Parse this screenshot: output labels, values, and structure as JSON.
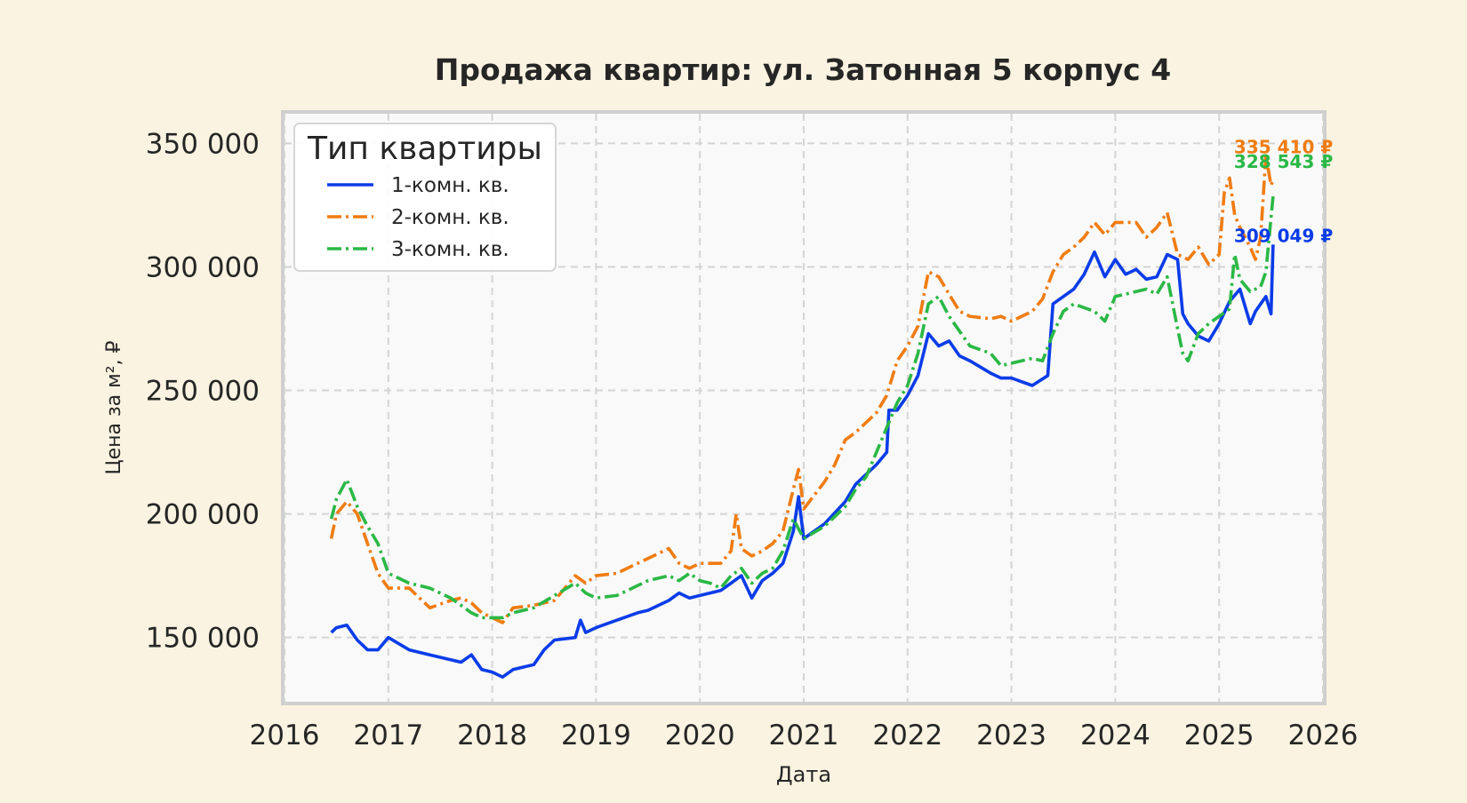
{
  "chart_data": {
    "type": "line",
    "title": "Продажа квартир: ул. Затонная 5 корпус 4",
    "xlabel": "Дата",
    "ylabel": "Цена за м², ₽",
    "xlim": [
      2016.0,
      2026.0
    ],
    "ylim": [
      124000,
      362000
    ],
    "x_ticks": [
      "2016",
      "2017",
      "2018",
      "2019",
      "2020",
      "2021",
      "2022",
      "2023",
      "2024",
      "2025",
      "2026"
    ],
    "x_tick_values": [
      2016,
      2017,
      2018,
      2019,
      2020,
      2021,
      2022,
      2023,
      2024,
      2025,
      2026
    ],
    "y_ticks": [
      "150 000",
      "200 000",
      "250 000",
      "300 000",
      "350 000"
    ],
    "y_tick_values": [
      150000,
      200000,
      250000,
      300000,
      350000
    ],
    "grid": true,
    "legend": {
      "title": "Тип квартиры",
      "position": "top-left"
    },
    "series": [
      {
        "name": "1-комн. кв.",
        "color": "#0a3ce8",
        "dash": "solid",
        "end_label": "309 049 ₽",
        "x": [
          2016.45,
          2016.5,
          2016.6,
          2016.7,
          2016.8,
          2016.9,
          2017.0,
          2017.2,
          2017.4,
          2017.6,
          2017.7,
          2017.8,
          2017.9,
          2018.0,
          2018.1,
          2018.2,
          2018.4,
          2018.5,
          2018.6,
          2018.8,
          2018.85,
          2018.9,
          2019.0,
          2019.2,
          2019.4,
          2019.5,
          2019.7,
          2019.8,
          2019.9,
          2020.0,
          2020.2,
          2020.3,
          2020.4,
          2020.5,
          2020.6,
          2020.7,
          2020.8,
          2020.9,
          2020.95,
          2021.0,
          2021.2,
          2021.4,
          2021.5,
          2021.6,
          2021.7,
          2021.8,
          2021.82,
          2021.9,
          2022.0,
          2022.1,
          2022.2,
          2022.3,
          2022.4,
          2022.5,
          2022.6,
          2022.8,
          2022.9,
          2023.0,
          2023.2,
          2023.35,
          2023.4,
          2023.6,
          2023.7,
          2023.8,
          2023.9,
          2024.0,
          2024.1,
          2024.2,
          2024.3,
          2024.4,
          2024.5,
          2024.6,
          2024.65,
          2024.7,
          2024.8,
          2024.9,
          2025.0,
          2025.1,
          2025.2,
          2025.3,
          2025.35,
          2025.4,
          2025.45,
          2025.5,
          2025.52
        ],
        "y": [
          152000,
          154000,
          155000,
          149000,
          145000,
          145000,
          150000,
          145000,
          143000,
          141000,
          140000,
          143000,
          137000,
          136000,
          134000,
          137000,
          139000,
          145000,
          149000,
          150000,
          157000,
          152000,
          154000,
          157000,
          160000,
          161000,
          165000,
          168000,
          166000,
          167000,
          169000,
          172000,
          175000,
          166000,
          173000,
          176000,
          180000,
          193000,
          207000,
          190000,
          196000,
          205000,
          212000,
          216000,
          220000,
          225000,
          242000,
          242000,
          248000,
          256000,
          273000,
          268000,
          270000,
          264000,
          262000,
          257000,
          255000,
          255000,
          252000,
          256000,
          285000,
          291000,
          297000,
          306000,
          296000,
          303000,
          297000,
          299000,
          295000,
          296000,
          305000,
          303000,
          281000,
          277000,
          272000,
          270000,
          277000,
          286000,
          291000,
          277000,
          282000,
          285000,
          288000,
          281000,
          309049
        ]
      },
      {
        "name": "2-комн. кв.",
        "color": "#f07c12",
        "dash": "dashdot",
        "end_label": "335 410 ₽",
        "x": [
          2016.45,
          2016.5,
          2016.6,
          2016.7,
          2016.8,
          2016.9,
          2017.0,
          2017.2,
          2017.4,
          2017.6,
          2017.7,
          2017.8,
          2017.9,
          2018.0,
          2018.1,
          2018.2,
          2018.4,
          2018.6,
          2018.8,
          2018.9,
          2019.0,
          2019.2,
          2019.4,
          2019.5,
          2019.7,
          2019.8,
          2019.9,
          2020.0,
          2020.2,
          2020.3,
          2020.35,
          2020.4,
          2020.5,
          2020.6,
          2020.7,
          2020.8,
          2020.9,
          2020.95,
          2021.0,
          2021.2,
          2021.3,
          2021.4,
          2021.5,
          2021.6,
          2021.7,
          2021.8,
          2021.9,
          2022.0,
          2022.1,
          2022.2,
          2022.3,
          2022.4,
          2022.5,
          2022.6,
          2022.8,
          2022.9,
          2023.0,
          2023.2,
          2023.3,
          2023.4,
          2023.5,
          2023.6,
          2023.7,
          2023.8,
          2023.9,
          2024.0,
          2024.2,
          2024.3,
          2024.4,
          2024.5,
          2024.6,
          2024.7,
          2024.8,
          2024.9,
          2025.0,
          2025.05,
          2025.1,
          2025.15,
          2025.2,
          2025.3,
          2025.35,
          2025.4,
          2025.45,
          2025.5,
          2025.52
        ],
        "y": [
          190000,
          200000,
          205000,
          200000,
          188000,
          176000,
          170000,
          170000,
          162000,
          165000,
          166000,
          164000,
          160000,
          158000,
          156000,
          162000,
          163000,
          165000,
          175000,
          172000,
          175000,
          176000,
          180000,
          182000,
          186000,
          180000,
          178000,
          180000,
          180000,
          185000,
          200000,
          186000,
          183000,
          185000,
          188000,
          193000,
          210000,
          218000,
          202000,
          213000,
          220000,
          230000,
          233000,
          237000,
          241000,
          248000,
          262000,
          268000,
          276000,
          298000,
          296000,
          289000,
          282000,
          280000,
          279000,
          280000,
          278000,
          282000,
          287000,
          298000,
          305000,
          308000,
          312000,
          318000,
          313000,
          318000,
          318000,
          312000,
          316000,
          322000,
          305000,
          303000,
          308000,
          301000,
          305000,
          330000,
          336000,
          321000,
          316000,
          308000,
          303000,
          312000,
          345000,
          333000,
          335410
        ]
      },
      {
        "name": "3-комн. кв.",
        "color": "#2ab845",
        "dash": "dashdot",
        "end_label": "328 543 ₽",
        "x": [
          2016.45,
          2016.5,
          2016.6,
          2016.7,
          2016.8,
          2016.9,
          2017.0,
          2017.2,
          2017.4,
          2017.6,
          2017.7,
          2017.8,
          2017.9,
          2018.0,
          2018.1,
          2018.2,
          2018.4,
          2018.6,
          2018.8,
          2018.9,
          2019.0,
          2019.2,
          2019.4,
          2019.5,
          2019.7,
          2019.8,
          2019.9,
          2020.0,
          2020.1,
          2020.2,
          2020.3,
          2020.4,
          2020.5,
          2020.6,
          2020.7,
          2020.8,
          2020.9,
          2021.0,
          2021.2,
          2021.4,
          2021.5,
          2021.6,
          2021.7,
          2021.8,
          2021.9,
          2022.0,
          2022.1,
          2022.2,
          2022.3,
          2022.4,
          2022.5,
          2022.6,
          2022.8,
          2022.9,
          2023.0,
          2023.2,
          2023.3,
          2023.4,
          2023.5,
          2023.6,
          2023.8,
          2023.9,
          2024.0,
          2024.2,
          2024.3,
          2024.4,
          2024.5,
          2024.6,
          2024.65,
          2024.7,
          2024.8,
          2024.9,
          2025.0,
          2025.1,
          2025.15,
          2025.2,
          2025.3,
          2025.4,
          2025.45,
          2025.5,
          2025.52
        ],
        "y": [
          198000,
          206000,
          214000,
          203000,
          195000,
          188000,
          176000,
          172000,
          170000,
          166000,
          163000,
          160000,
          158000,
          158000,
          158000,
          160000,
          162000,
          167000,
          172000,
          168000,
          166000,
          167000,
          171000,
          173000,
          175000,
          173000,
          176000,
          173000,
          172000,
          170000,
          175000,
          178000,
          172000,
          176000,
          178000,
          185000,
          198000,
          190000,
          195000,
          203000,
          210000,
          215000,
          225000,
          235000,
          245000,
          252000,
          265000,
          285000,
          288000,
          280000,
          274000,
          268000,
          265000,
          260000,
          261000,
          263000,
          262000,
          273000,
          282000,
          285000,
          282000,
          278000,
          288000,
          290000,
          291000,
          289000,
          296000,
          275000,
          265000,
          262000,
          273000,
          277000,
          280000,
          283000,
          305000,
          295000,
          290000,
          292000,
          298000,
          320000,
          328543
        ]
      }
    ]
  }
}
